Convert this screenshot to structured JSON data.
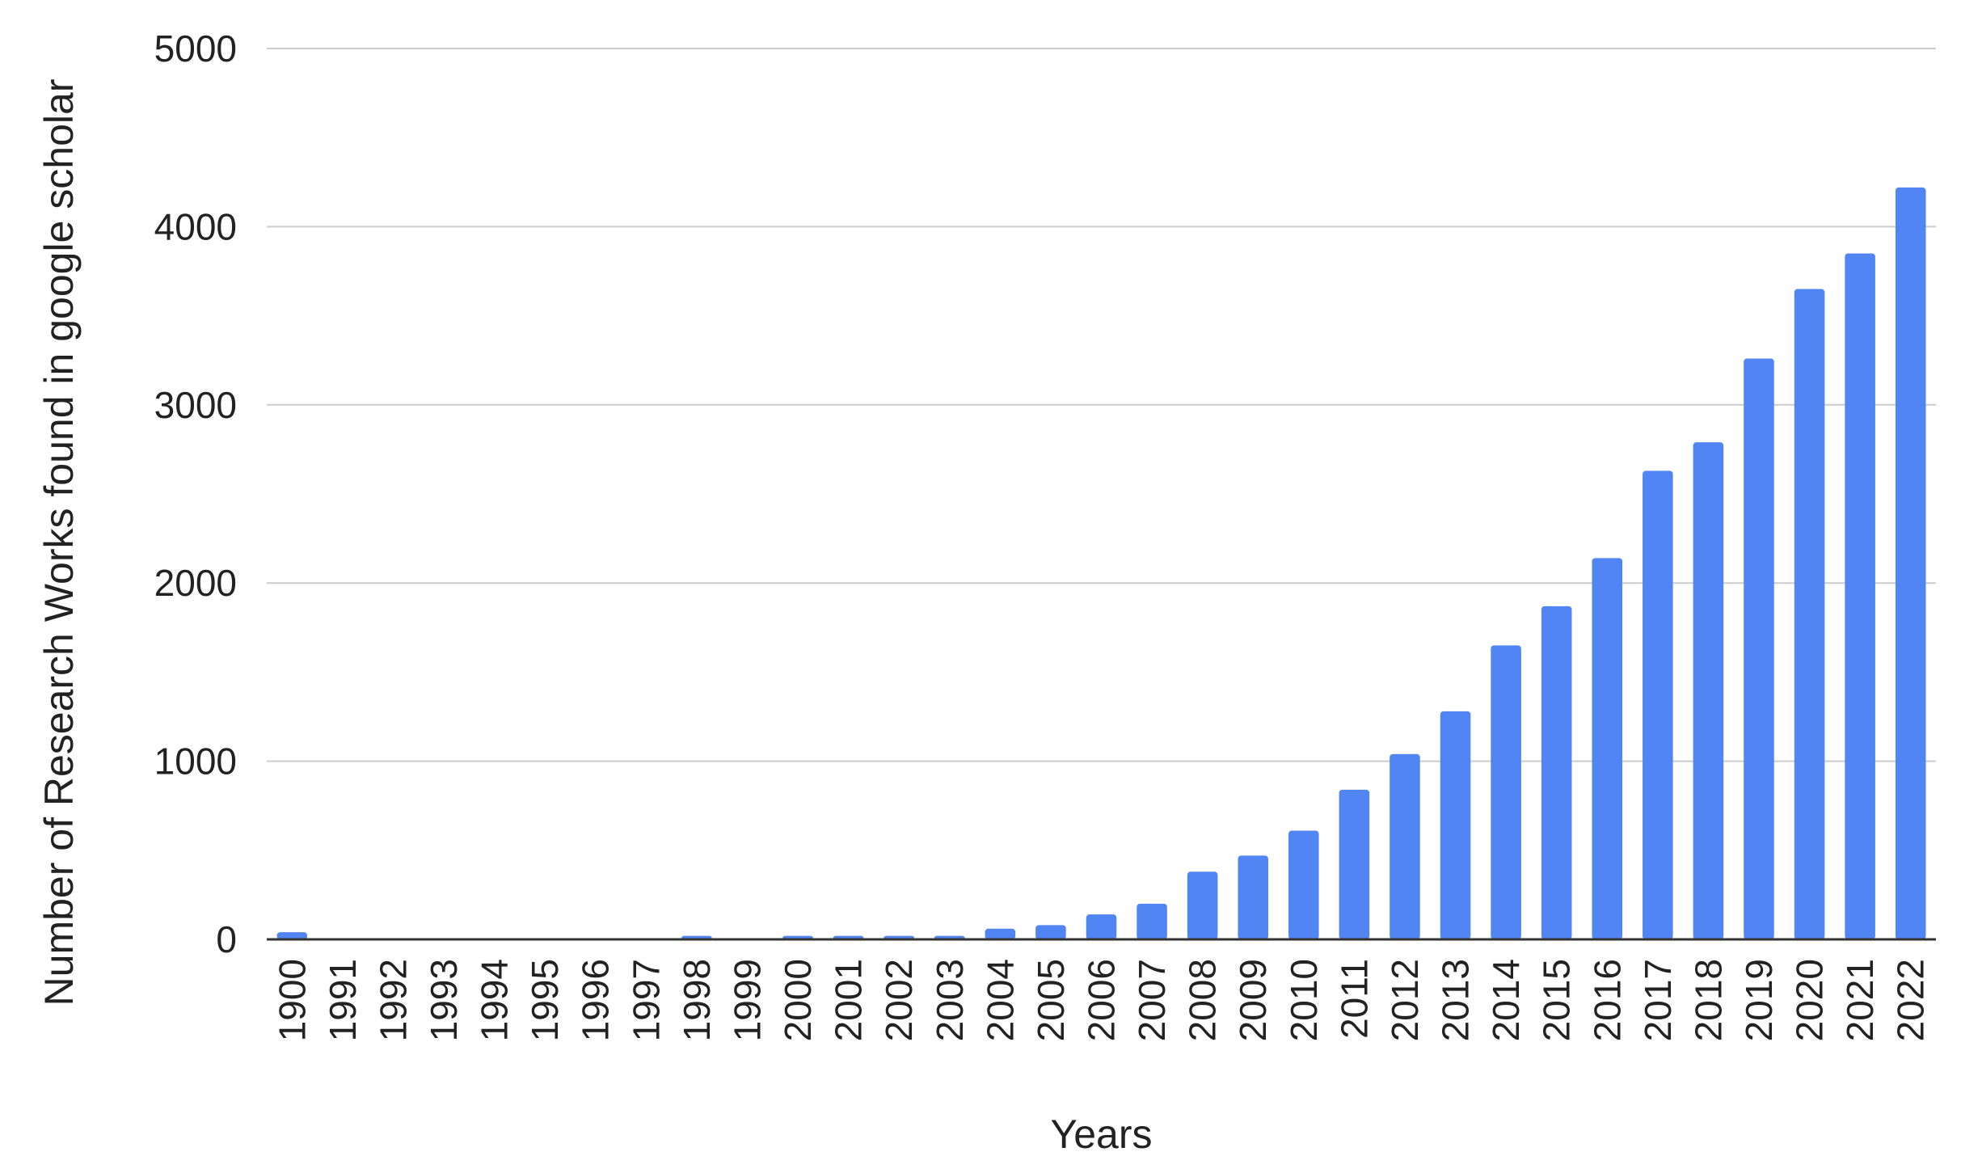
{
  "chart_data": {
    "type": "bar",
    "categories": [
      "1900",
      "1991",
      "1992",
      "1993",
      "1994",
      "1995",
      "1996",
      "1997",
      "1998",
      "1999",
      "2000",
      "2001",
      "2002",
      "2003",
      "2004",
      "2005",
      "2006",
      "2007",
      "2008",
      "2009",
      "2010",
      "2011",
      "2012",
      "2013",
      "2014",
      "2015",
      "2016",
      "2017",
      "2018",
      "2019",
      "2020",
      "2021",
      "2022"
    ],
    "series": [
      {
        "values": [
          40,
          0,
          0,
          0,
          0,
          0,
          0,
          0,
          20,
          0,
          20,
          20,
          20,
          20,
          60,
          80,
          140,
          200,
          380,
          470,
          610,
          840,
          1040,
          1280,
          1650,
          1870,
          2140,
          2630,
          2790,
          3260,
          3650,
          3850,
          4220
        ],
        "color": "#5185f4"
      }
    ],
    "title": "",
    "xlabel": "Years",
    "ylabel": "Number of Research Works found in google scholar",
    "ylim": [
      0,
      5000
    ],
    "yticks": [
      0,
      1000,
      2000,
      3000,
      4000,
      5000
    ],
    "grid": true,
    "legend": "none"
  }
}
